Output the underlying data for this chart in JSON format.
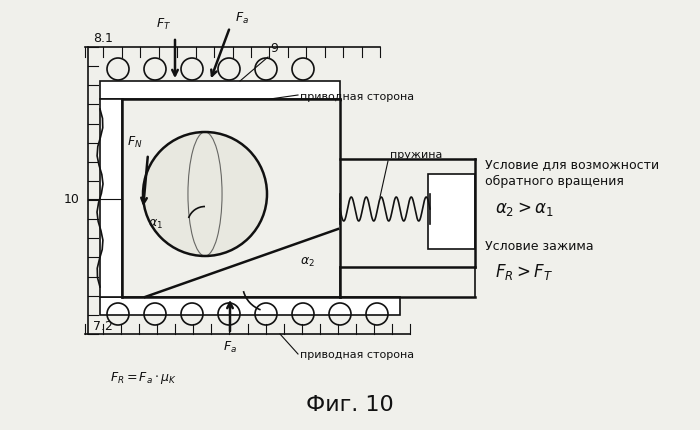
{
  "fig_label": "Фиг. 10",
  "text_condition1": "Условие для возможности",
  "text_condition1b": "обратного вращения",
  "text_condition2": "Условие зажима",
  "label_81": "8.1",
  "label_9": "9",
  "label_10": "10",
  "label_72": "7.2",
  "label_drive_top": "приводная сторона",
  "label_drive_bottom": "приводная сторона",
  "label_spring": "пружина",
  "label_FT": "$F_T$",
  "label_Fa_top": "$F_a$",
  "label_FN": "$F_N$",
  "label_alpha1": "$\\alpha_1$",
  "label_alpha2": "$\\alpha_2$",
  "label_Fa_bot": "$F_a$",
  "label_FR_eq": "$F_R = F_a \\cdot \\mu_K$",
  "eq_alpha": "$\\alpha_2 > \\alpha_1$",
  "eq_FR": "$F_R > F_T$",
  "bg_color": "#f0f0eb",
  "line_color": "#111111",
  "text_color": "#111111"
}
